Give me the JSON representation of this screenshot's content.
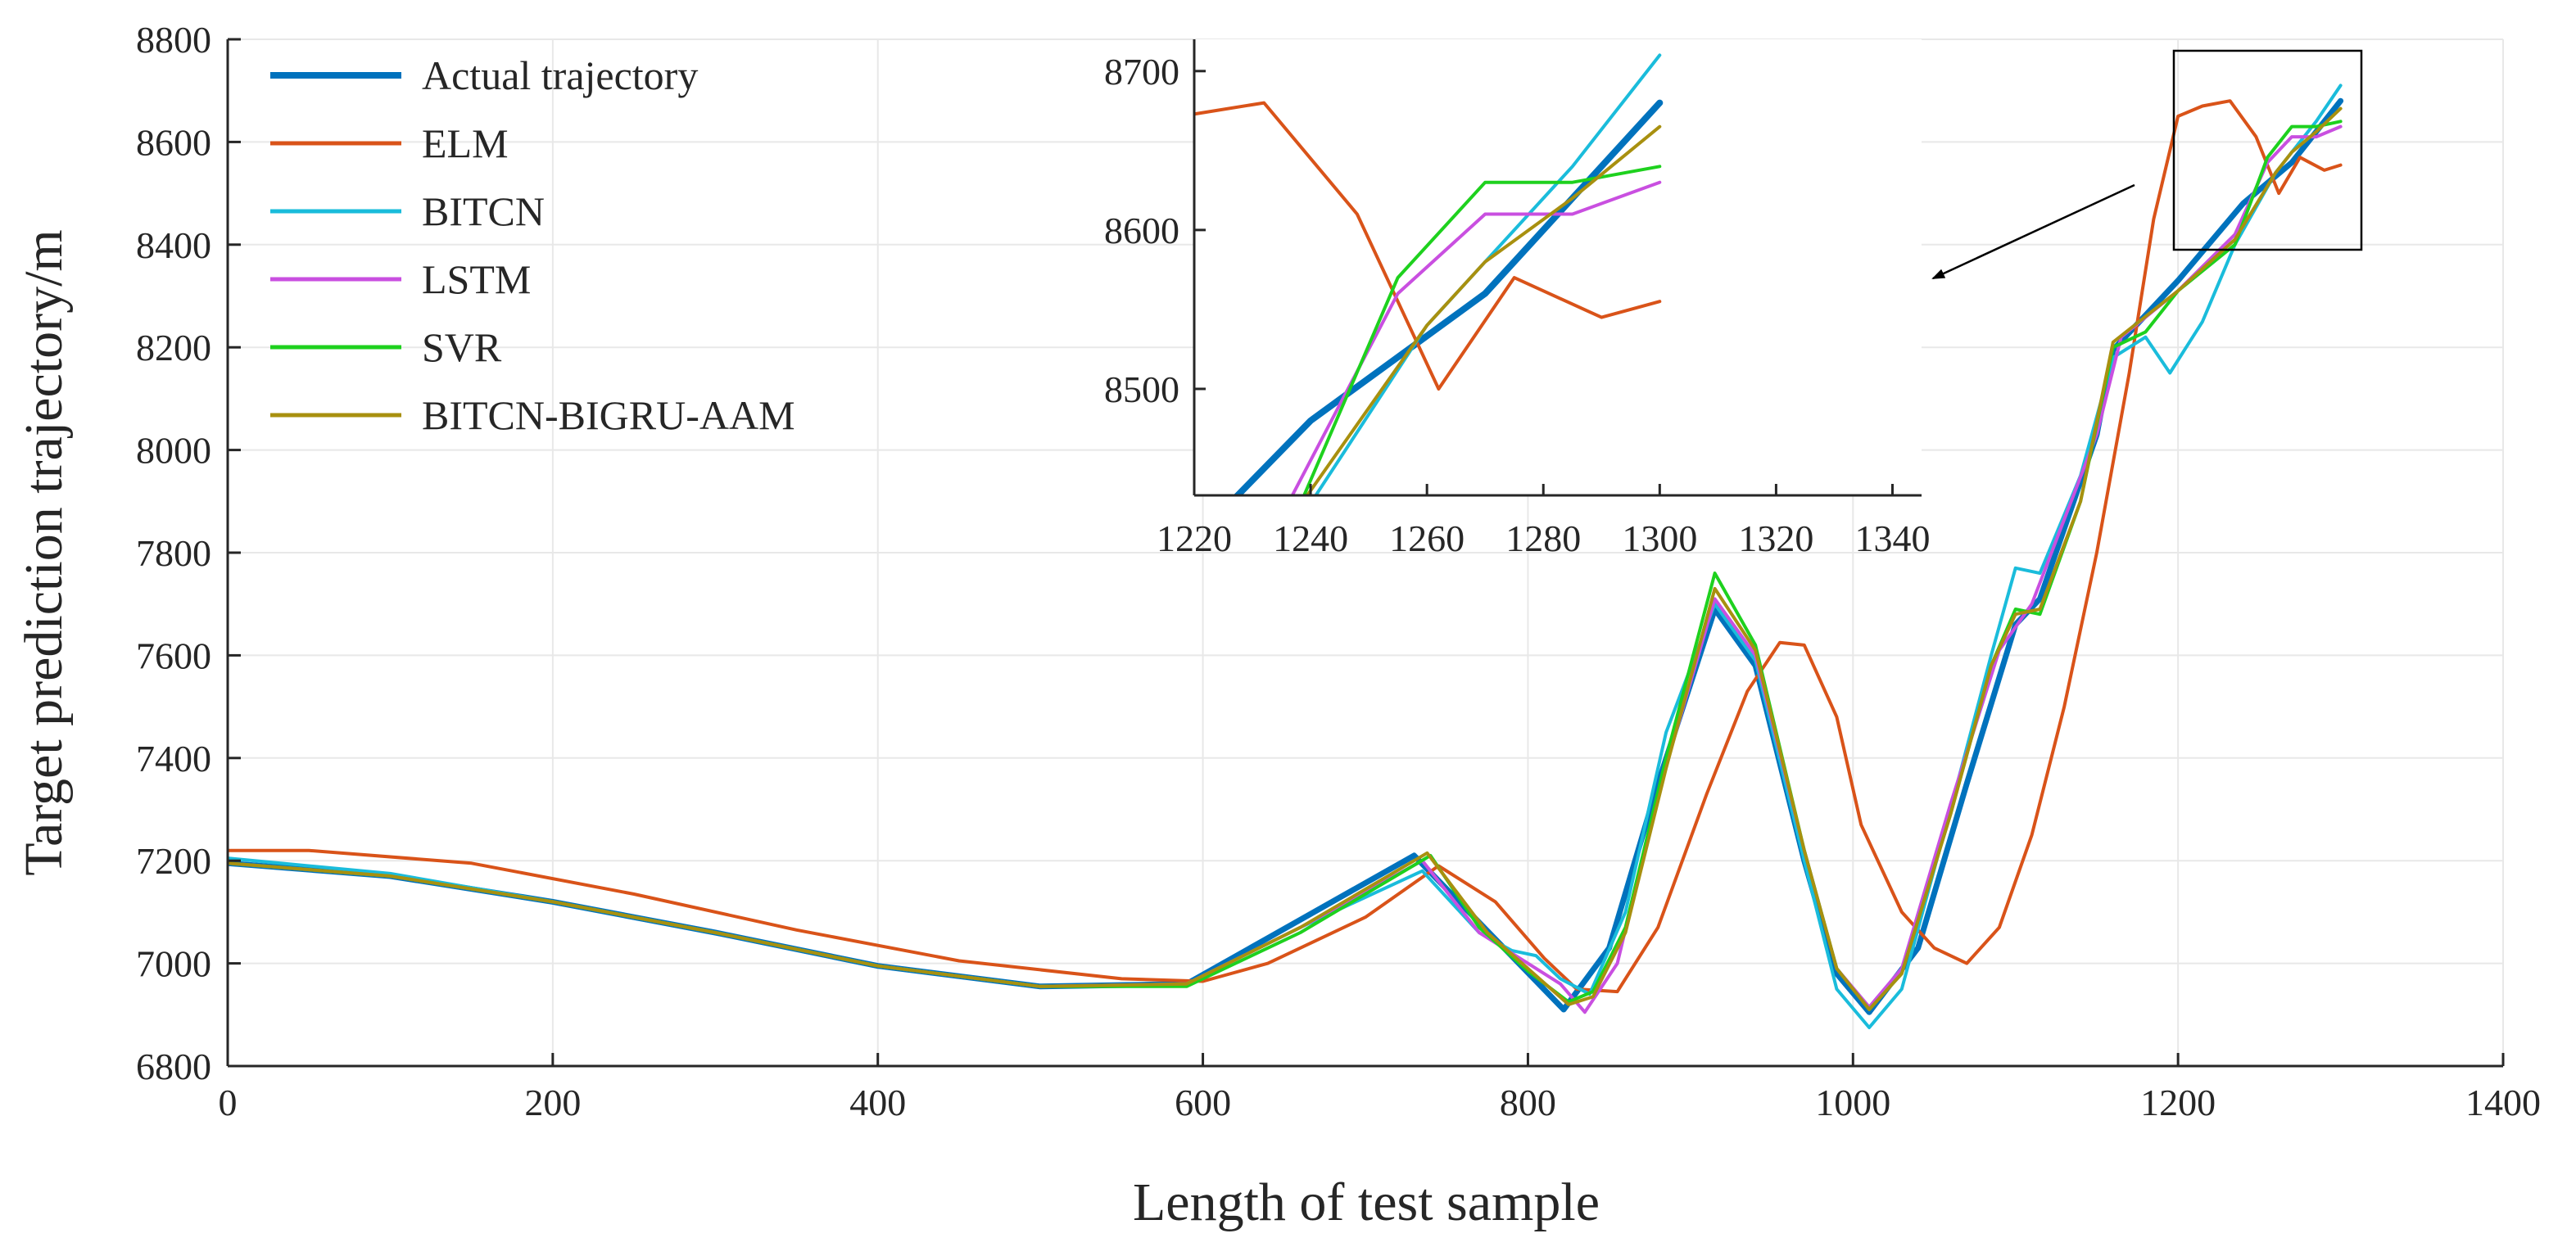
{
  "chart_data": {
    "type": "line",
    "title": "",
    "xlabel": "Length of test sample",
    "ylabel": "Target prediction trajectory/m",
    "xlim": [
      0,
      1400
    ],
    "ylim": [
      6800,
      8800
    ],
    "xticks": [
      "0",
      "200",
      "400",
      "600",
      "800",
      "1000",
      "1200",
      "1400"
    ],
    "yticks": [
      "6800",
      "7000",
      "7200",
      "7400",
      "7600",
      "7800",
      "8000",
      "8200",
      "8400",
      "8600",
      "8800"
    ],
    "grid": true,
    "legend_position": "top-left",
    "series": [
      {
        "name": "Actual trajectory",
        "color": "#0072BD",
        "width": "thick",
        "points": [
          [
            0,
            7195
          ],
          [
            100,
            7170
          ],
          [
            200,
            7120
          ],
          [
            300,
            7060
          ],
          [
            400,
            6995
          ],
          [
            500,
            6955
          ],
          [
            590,
            6960
          ],
          [
            730,
            7210
          ],
          [
            822,
            6910
          ],
          [
            850,
            7030
          ],
          [
            880,
            7350
          ],
          [
            915,
            7690
          ],
          [
            940,
            7580
          ],
          [
            970,
            7200
          ],
          [
            990,
            6980
          ],
          [
            1010,
            6905
          ],
          [
            1040,
            7030
          ],
          [
            1070,
            7350
          ],
          [
            1100,
            7660
          ],
          [
            1115,
            7710
          ],
          [
            1150,
            8030
          ],
          [
            1160,
            8195
          ],
          [
            1200,
            8330
          ],
          [
            1240,
            8480
          ],
          [
            1270,
            8560
          ],
          [
            1300,
            8680
          ]
        ]
      },
      {
        "name": "ELM",
        "color": "#D95319",
        "width": "normal",
        "points": [
          [
            0,
            7220
          ],
          [
            50,
            7220
          ],
          [
            150,
            7195
          ],
          [
            250,
            7135
          ],
          [
            350,
            7065
          ],
          [
            450,
            7005
          ],
          [
            550,
            6970
          ],
          [
            600,
            6965
          ],
          [
            640,
            7000
          ],
          [
            700,
            7090
          ],
          [
            745,
            7190
          ],
          [
            780,
            7120
          ],
          [
            810,
            7010
          ],
          [
            830,
            6950
          ],
          [
            855,
            6945
          ],
          [
            880,
            7070
          ],
          [
            910,
            7330
          ],
          [
            935,
            7530
          ],
          [
            955,
            7625
          ],
          [
            970,
            7620
          ],
          [
            990,
            7480
          ],
          [
            1005,
            7270
          ],
          [
            1030,
            7100
          ],
          [
            1050,
            7030
          ],
          [
            1070,
            7000
          ],
          [
            1090,
            7070
          ],
          [
            1110,
            7250
          ],
          [
            1130,
            7500
          ],
          [
            1150,
            7800
          ],
          [
            1170,
            8150
          ],
          [
            1185,
            8450
          ],
          [
            1200,
            8650
          ],
          [
            1215,
            8670
          ],
          [
            1232,
            8680
          ],
          [
            1248,
            8610
          ],
          [
            1262,
            8500
          ],
          [
            1275,
            8570
          ],
          [
            1290,
            8545
          ],
          [
            1300,
            8555
          ]
        ]
      },
      {
        "name": "BITCN",
        "color": "#1ABCDB",
        "width": "normal",
        "points": [
          [
            0,
            7205
          ],
          [
            100,
            7175
          ],
          [
            200,
            7120
          ],
          [
            300,
            7060
          ],
          [
            400,
            6995
          ],
          [
            500,
            6955
          ],
          [
            590,
            6960
          ],
          [
            660,
            7070
          ],
          [
            735,
            7180
          ],
          [
            770,
            7060
          ],
          [
            790,
            7025
          ],
          [
            805,
            7015
          ],
          [
            820,
            6970
          ],
          [
            838,
            6940
          ],
          [
            860,
            7100
          ],
          [
            885,
            7450
          ],
          [
            915,
            7700
          ],
          [
            940,
            7590
          ],
          [
            970,
            7200
          ],
          [
            990,
            6950
          ],
          [
            1010,
            6875
          ],
          [
            1030,
            6950
          ],
          [
            1060,
            7300
          ],
          [
            1085,
            7600
          ],
          [
            1100,
            7770
          ],
          [
            1115,
            7760
          ],
          [
            1140,
            7950
          ],
          [
            1160,
            8180
          ],
          [
            1180,
            8220
          ],
          [
            1195,
            8150
          ],
          [
            1215,
            8250
          ],
          [
            1235,
            8400
          ],
          [
            1260,
            8540
          ],
          [
            1285,
            8640
          ],
          [
            1300,
            8710
          ]
        ]
      },
      {
        "name": "LSTM",
        "color": "#C94FE0",
        "width": "normal",
        "points": [
          [
            0,
            7195
          ],
          [
            100,
            7170
          ],
          [
            200,
            7120
          ],
          [
            300,
            7060
          ],
          [
            400,
            6995
          ],
          [
            500,
            6955
          ],
          [
            590,
            6960
          ],
          [
            660,
            7070
          ],
          [
            735,
            7200
          ],
          [
            770,
            7060
          ],
          [
            800,
            7000
          ],
          [
            820,
            6960
          ],
          [
            835,
            6905
          ],
          [
            855,
            7000
          ],
          [
            880,
            7330
          ],
          [
            915,
            7710
          ],
          [
            940,
            7600
          ],
          [
            970,
            7220
          ],
          [
            990,
            6990
          ],
          [
            1010,
            6915
          ],
          [
            1030,
            6990
          ],
          [
            1060,
            7310
          ],
          [
            1090,
            7610
          ],
          [
            1110,
            7700
          ],
          [
            1150,
            8030
          ],
          [
            1165,
            8220
          ],
          [
            1200,
            8310
          ],
          [
            1235,
            8420
          ],
          [
            1255,
            8560
          ],
          [
            1270,
            8610
          ],
          [
            1285,
            8610
          ],
          [
            1300,
            8630
          ]
        ]
      },
      {
        "name": "SVR",
        "color": "#1ED11E",
        "width": "normal",
        "points": [
          [
            0,
            7195
          ],
          [
            100,
            7170
          ],
          [
            200,
            7120
          ],
          [
            300,
            7060
          ],
          [
            400,
            6995
          ],
          [
            500,
            6955
          ],
          [
            590,
            6955
          ],
          [
            660,
            7060
          ],
          [
            740,
            7210
          ],
          [
            770,
            7070
          ],
          [
            800,
            6985
          ],
          [
            825,
            6925
          ],
          [
            840,
            6945
          ],
          [
            860,
            7070
          ],
          [
            885,
            7400
          ],
          [
            915,
            7760
          ],
          [
            940,
            7620
          ],
          [
            970,
            7220
          ],
          [
            990,
            6990
          ],
          [
            1010,
            6910
          ],
          [
            1030,
            6980
          ],
          [
            1060,
            7290
          ],
          [
            1085,
            7580
          ],
          [
            1100,
            7690
          ],
          [
            1115,
            7680
          ],
          [
            1140,
            7900
          ],
          [
            1160,
            8200
          ],
          [
            1180,
            8230
          ],
          [
            1200,
            8310
          ],
          [
            1235,
            8400
          ],
          [
            1255,
            8570
          ],
          [
            1270,
            8630
          ],
          [
            1285,
            8630
          ],
          [
            1300,
            8640
          ]
        ]
      },
      {
        "name": "BITCN-BIGRU-AAM",
        "color": "#A8900F",
        "width": "normal",
        "points": [
          [
            0,
            7195
          ],
          [
            100,
            7170
          ],
          [
            200,
            7120
          ],
          [
            300,
            7060
          ],
          [
            400,
            6995
          ],
          [
            500,
            6955
          ],
          [
            590,
            6960
          ],
          [
            660,
            7070
          ],
          [
            738,
            7215
          ],
          [
            775,
            7060
          ],
          [
            800,
            6990
          ],
          [
            825,
            6920
          ],
          [
            840,
            6935
          ],
          [
            860,
            7060
          ],
          [
            885,
            7380
          ],
          [
            915,
            7730
          ],
          [
            940,
            7610
          ],
          [
            970,
            7220
          ],
          [
            990,
            6990
          ],
          [
            1010,
            6910
          ],
          [
            1030,
            6980
          ],
          [
            1060,
            7290
          ],
          [
            1085,
            7580
          ],
          [
            1100,
            7680
          ],
          [
            1115,
            7690
          ],
          [
            1140,
            7900
          ],
          [
            1160,
            8210
          ],
          [
            1200,
            8310
          ],
          [
            1235,
            8410
          ],
          [
            1260,
            8540
          ],
          [
            1270,
            8580
          ],
          [
            1285,
            8620
          ],
          [
            1300,
            8665
          ]
        ]
      }
    ],
    "inset": {
      "xlim": [
        1220,
        1345
      ],
      "ylim": [
        8433,
        8720
      ],
      "xticks": [
        "1220",
        "1240",
        "1260",
        "1280",
        "1300",
        "1320",
        "1340"
      ],
      "yticks": [
        "8500",
        "8600",
        "8700"
      ]
    },
    "annotation": {
      "type": "zoom-box-with-arrow",
      "box_xlim": [
        1200,
        1312
      ],
      "box_ylim": [
        8590,
        8770
      ]
    }
  }
}
